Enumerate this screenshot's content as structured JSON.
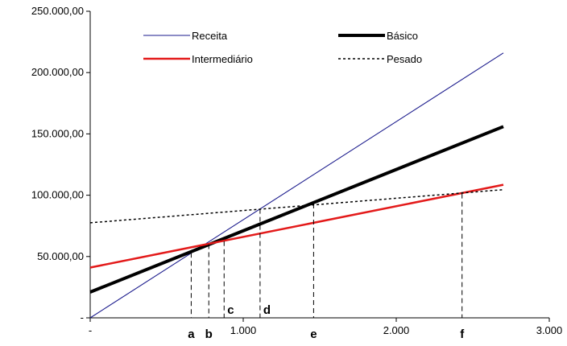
{
  "chart_data": {
    "type": "line",
    "title": "",
    "xlabel": "",
    "ylabel": "",
    "xlim": [
      0,
      3000
    ],
    "ylim": [
      0,
      250000
    ],
    "x_ticks": [
      {
        "value": 0,
        "label": "-"
      },
      {
        "value": 1000,
        "label": "1.000"
      },
      {
        "value": 2000,
        "label": "2.000"
      },
      {
        "value": 3000,
        "label": "3.000"
      }
    ],
    "y_ticks": [
      {
        "value": 0,
        "label": "-"
      },
      {
        "value": 50000,
        "label": "50.000,00"
      },
      {
        "value": 100000,
        "label": "100.000,00"
      },
      {
        "value": 150000,
        "label": "150.000,00"
      },
      {
        "value": 200000,
        "label": "200.000,00"
      },
      {
        "value": 250000,
        "label": "250.000,00"
      }
    ],
    "grid": false,
    "legend_position": "top",
    "series": [
      {
        "name": "Receita",
        "color": "#1a1a8c",
        "style": "solid-thin",
        "x": [
          0,
          2700
        ],
        "y": [
          0,
          216000
        ]
      },
      {
        "name": "Básico",
        "color": "#000000",
        "style": "solid-thick",
        "x": [
          0,
          2700
        ],
        "y": [
          21000,
          156000
        ]
      },
      {
        "name": "Intermediário",
        "color": "#e31a1a",
        "style": "solid-medium",
        "x": [
          0,
          2700
        ],
        "y": [
          41000,
          108500
        ]
      },
      {
        "name": "Pesado",
        "color": "#000000",
        "style": "dotted",
        "x": [
          0,
          2700
        ],
        "y": [
          77500,
          104500
        ]
      }
    ],
    "markers": [
      {
        "label": "a",
        "x": 660,
        "y": 53000,
        "label_row": "bottom"
      },
      {
        "label": "b",
        "x": 775,
        "y": 60000,
        "label_row": "bottom"
      },
      {
        "label": "c",
        "x": 875,
        "y": 62500,
        "label_row": "top"
      },
      {
        "label": "d",
        "x": 1110,
        "y": 88800,
        "label_row": "top"
      },
      {
        "label": "e",
        "x": 1460,
        "y": 93200,
        "label_row": "bottom"
      },
      {
        "label": "f",
        "x": 2430,
        "y": 101300,
        "label_row": "bottom"
      }
    ]
  }
}
